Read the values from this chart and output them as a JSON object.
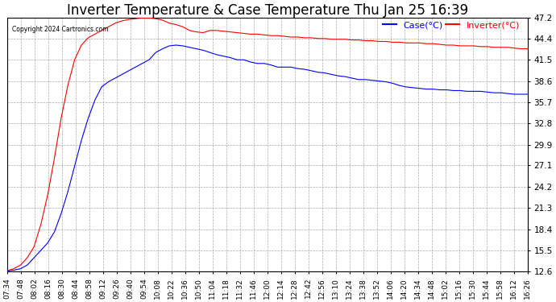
{
  "title": "Inverter Temperature & Case Temperature Thu Jan 25 16:39",
  "copyright": "Copyright 2024 Cartronics.com",
  "legend_labels": [
    "Case(°C)",
    "Inverter(°C)"
  ],
  "legend_colors": [
    "blue",
    "red"
  ],
  "y_ticks": [
    12.6,
    15.5,
    18.4,
    21.3,
    24.2,
    27.1,
    29.9,
    32.8,
    35.7,
    38.6,
    41.5,
    44.4,
    47.2
  ],
  "x_labels": [
    "07:34",
    "07:48",
    "08:02",
    "08:16",
    "08:30",
    "08:44",
    "08:58",
    "09:12",
    "09:26",
    "09:40",
    "09:54",
    "10:08",
    "10:22",
    "10:36",
    "10:50",
    "11:04",
    "11:18",
    "11:32",
    "11:46",
    "12:00",
    "12:14",
    "12:28",
    "12:42",
    "12:56",
    "13:10",
    "13:24",
    "13:38",
    "13:52",
    "14:06",
    "14:20",
    "14:34",
    "14:48",
    "15:02",
    "15:16",
    "15:30",
    "15:44",
    "15:58",
    "16:12",
    "16:26"
  ],
  "background_color": "#ffffff",
  "grid_color": "#aaaaaa",
  "title_fontsize": 12,
  "case_color": "blue",
  "inverter_color": "red",
  "ylim": [
    12.6,
    47.2
  ],
  "case_data": [
    12.7,
    12.8,
    13.0,
    13.5,
    14.5,
    15.5,
    16.5,
    18.0,
    20.5,
    23.5,
    27.0,
    30.5,
    33.5,
    36.0,
    37.8,
    38.5,
    39.0,
    39.5,
    40.0,
    40.5,
    41.0,
    41.5,
    42.5,
    43.0,
    43.4,
    43.5,
    43.4,
    43.2,
    43.0,
    42.8,
    42.5,
    42.2,
    42.0,
    41.8,
    41.5,
    41.5,
    41.2,
    41.0,
    41.0,
    40.8,
    40.5,
    40.5,
    40.5,
    40.3,
    40.2,
    40.0,
    39.8,
    39.7,
    39.5,
    39.3,
    39.2,
    39.0,
    38.8,
    38.8,
    38.7,
    38.6,
    38.5,
    38.3,
    38.0,
    37.8,
    37.7,
    37.6,
    37.5,
    37.5,
    37.4,
    37.4,
    37.3,
    37.3,
    37.2,
    37.2,
    37.2,
    37.1,
    37.0,
    37.0,
    36.9,
    36.8,
    36.8,
    36.8
  ],
  "inverter_data": [
    12.7,
    13.0,
    13.5,
    14.5,
    16.0,
    19.0,
    23.0,
    28.0,
    33.5,
    38.0,
    41.5,
    43.5,
    44.5,
    45.0,
    45.5,
    46.0,
    46.5,
    46.8,
    47.0,
    47.1,
    47.2,
    47.2,
    47.1,
    46.9,
    46.5,
    46.3,
    46.0,
    45.5,
    45.3,
    45.2,
    45.5,
    45.5,
    45.4,
    45.3,
    45.2,
    45.1,
    45.0,
    45.0,
    44.9,
    44.8,
    44.8,
    44.7,
    44.6,
    44.6,
    44.5,
    44.5,
    44.4,
    44.4,
    44.3,
    44.3,
    44.3,
    44.2,
    44.2,
    44.1,
    44.1,
    44.0,
    44.0,
    43.9,
    43.9,
    43.8,
    43.8,
    43.8,
    43.7,
    43.7,
    43.6,
    43.5,
    43.5,
    43.4,
    43.4,
    43.4,
    43.3,
    43.3,
    43.2,
    43.2,
    43.2,
    43.1,
    43.0,
    43.0
  ]
}
